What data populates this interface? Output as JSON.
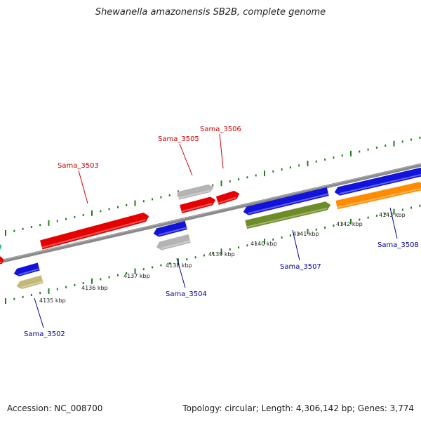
{
  "title": "Shewanella amazonensis SB2B, complete genome",
  "accession": "Accession: NC_008700",
  "topology": "Topology: circular; Length: 4,306,142 bp; Genes: 3,774",
  "colors": {
    "backbone": "#8a8a8a",
    "ticks": "#1e7d1e",
    "red": "#e60000",
    "blue": "#1212dd",
    "grey": "#b4b4b4",
    "olive": "#6e8c28",
    "orange": "#ff8c00",
    "khaki": "#c2b878",
    "teal": "#1bb89a",
    "label_red": "#cc0000",
    "label_blue": "#000099"
  },
  "kbp_labels": [
    "4135 kbp",
    "4136 kbp",
    "4137 kbp",
    "4138 kbp",
    "4139 kbp",
    "4140 kbp",
    "4141 kbp",
    "4142 kbp",
    "4143 kbp"
  ],
  "genes": [
    {
      "label": "Sama_3502",
      "color": "blue"
    },
    {
      "label": "Sama_3503",
      "color": "red"
    },
    {
      "label": "Sama_3504",
      "color": "blue"
    },
    {
      "label": "Sama_3505",
      "color": "red"
    },
    {
      "label": "Sama_3506",
      "color": "red"
    },
    {
      "label": "Sama_3507",
      "color": "blue"
    },
    {
      "label": "Sama_3508",
      "color": "blue"
    }
  ]
}
